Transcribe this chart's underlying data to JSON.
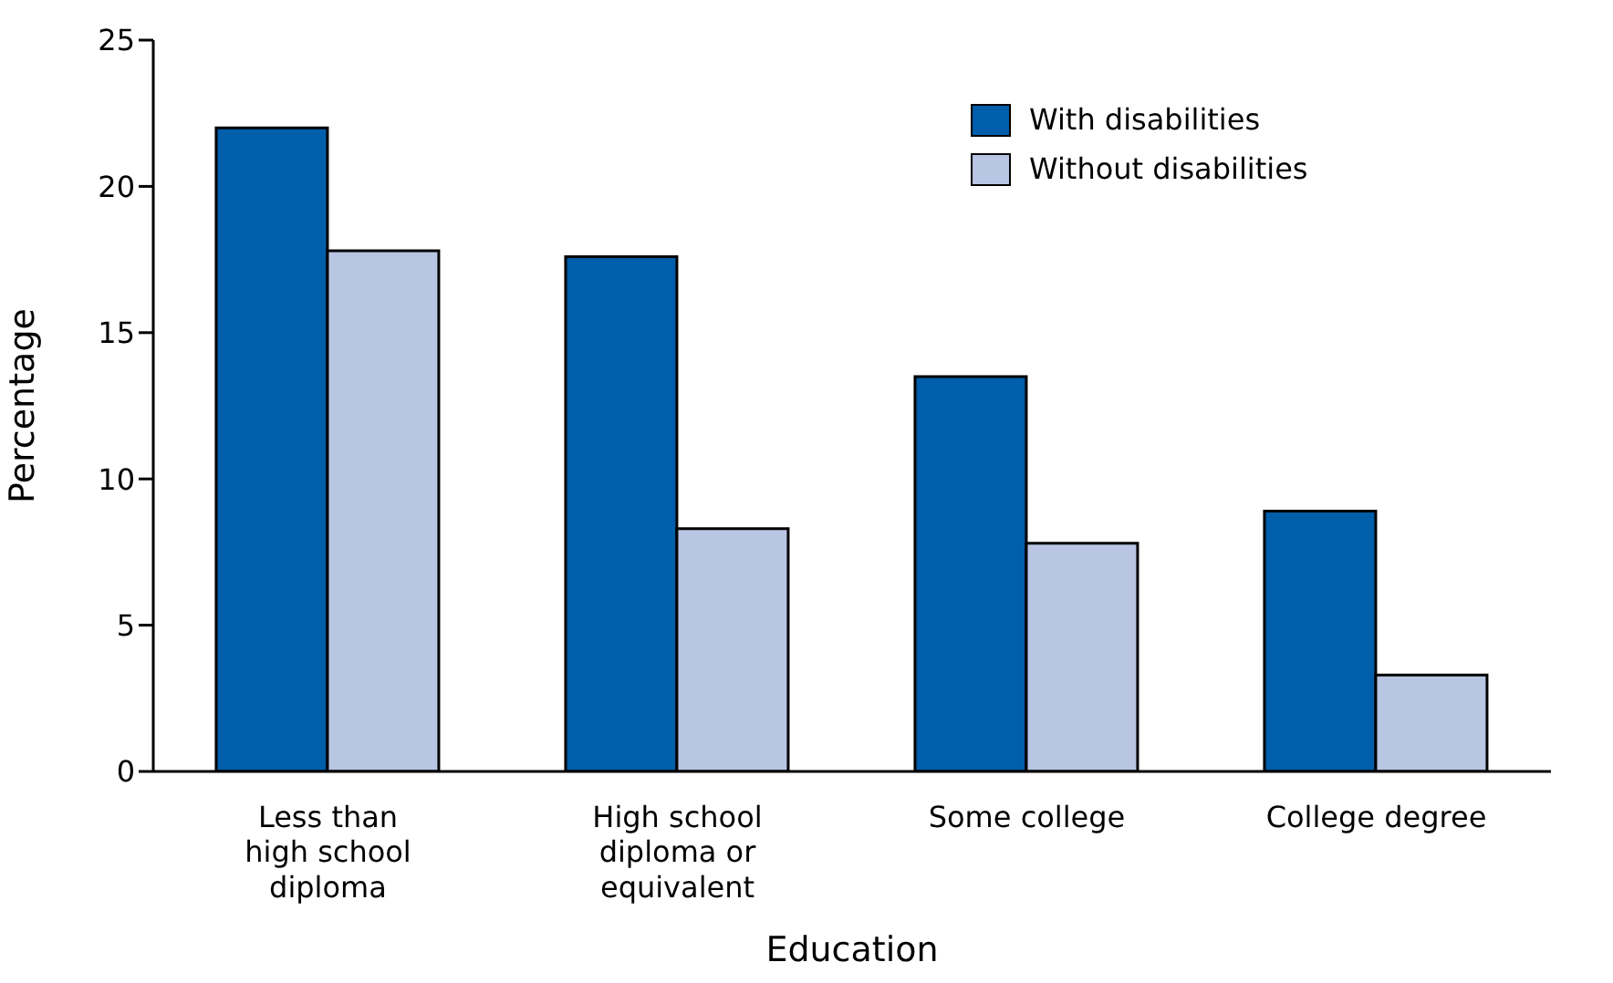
{
  "chart_data": {
    "type": "bar",
    "xlabel": "Education",
    "ylabel": "Percentage",
    "categories": [
      "Less than\nhigh school\ndiploma",
      "High school\ndiploma or\nequivalent",
      "Some college",
      "College degree"
    ],
    "series": [
      {
        "name": "With disabilities",
        "color": "#005eaa",
        "values": [
          22,
          17.6,
          13.5,
          8.9
        ]
      },
      {
        "name": "Without disabilities",
        "color": "#b8c5e3",
        "values": [
          17.8,
          8.3,
          7.8,
          3.3
        ]
      }
    ],
    "ylim": [
      0,
      25
    ],
    "yticks": [
      0,
      5,
      10,
      15,
      20,
      25
    ],
    "grid": false,
    "legend": "top right"
  }
}
